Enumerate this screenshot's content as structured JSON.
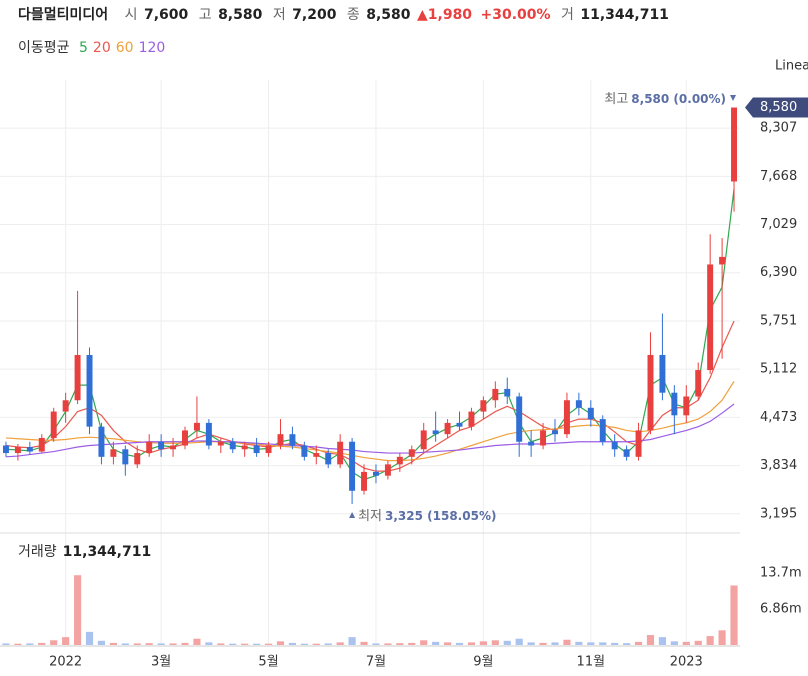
{
  "header": {
    "name": "다믈멀티미디어",
    "items": [
      {
        "label": "시",
        "value": "7,600"
      },
      {
        "label": "고",
        "value": "8,580"
      },
      {
        "label": "저",
        "value": "7,200"
      },
      {
        "label": "종",
        "value": "8,580"
      }
    ],
    "change": "▲1,980",
    "change_pct": "+30.00%",
    "volume_label": "거",
    "volume_value": "11,344,711",
    "ma_title": "이동평균",
    "scale": "Linea"
  },
  "chart_data": {
    "type": "candlestick",
    "categories": [
      null,
      null,
      null,
      null,
      null,
      "2022",
      null,
      null,
      null,
      null,
      null,
      null,
      null,
      "3월",
      null,
      null,
      null,
      null,
      null,
      null,
      null,
      null,
      "5월",
      null,
      null,
      null,
      null,
      null,
      null,
      null,
      null,
      "7월",
      null,
      null,
      null,
      null,
      null,
      null,
      null,
      null,
      "9월",
      null,
      null,
      null,
      null,
      null,
      null,
      null,
      null,
      "11월",
      null,
      null,
      null,
      null,
      null,
      null,
      null,
      "2023",
      null,
      null,
      null,
      null
    ],
    "open": [
      4100,
      4000,
      4080,
      4020,
      4200,
      4550,
      4700,
      5300,
      4350,
      3950,
      4050,
      3850,
      4000,
      4150,
      4050,
      4100,
      4300,
      4400,
      4100,
      4150,
      4050,
      4100,
      4000,
      4100,
      4250,
      4100,
      3950,
      4000,
      3850,
      4150,
      3500,
      3750,
      3700,
      3850,
      3950,
      4050,
      4300,
      4250,
      4400,
      4350,
      4550,
      4700,
      4850,
      4750,
      4150,
      4100,
      4300,
      4250,
      4700,
      4600,
      4450,
      4150,
      4050,
      3950,
      4300,
      5300,
      4800,
      4500,
      4750,
      5100,
      6500,
      7600
    ],
    "high": [
      4150,
      4120,
      4150,
      4250,
      4600,
      4800,
      6150,
      5400,
      4400,
      4150,
      4100,
      4100,
      4250,
      4250,
      4200,
      4350,
      4750,
      4450,
      4200,
      4200,
      4150,
      4200,
      4150,
      4450,
      4350,
      4150,
      4100,
      4050,
      4250,
      4200,
      3850,
      3850,
      3900,
      4000,
      4100,
      4400,
      4550,
      4450,
      4550,
      4600,
      4750,
      4950,
      5000,
      4800,
      4300,
      4400,
      4450,
      4800,
      4800,
      4700,
      4500,
      4250,
      4100,
      4400,
      5600,
      5850,
      4900,
      4900,
      5200,
      6900,
      6850,
      8580
    ],
    "low": [
      3950,
      3900,
      3980,
      4000,
      4150,
      4400,
      4650,
      4250,
      3850,
      3850,
      3700,
      3800,
      3950,
      3950,
      3950,
      4050,
      4200,
      4050,
      4000,
      4000,
      3950,
      3950,
      3950,
      4050,
      4050,
      3900,
      3850,
      3800,
      3800,
      3325,
      3450,
      3600,
      3650,
      3750,
      3850,
      4000,
      4150,
      4200,
      4300,
      4300,
      4450,
      4600,
      4650,
      3950,
      3950,
      4050,
      4150,
      4200,
      4500,
      4350,
      4100,
      3950,
      3900,
      3900,
      4250,
      4700,
      4250,
      4400,
      4700,
      5050,
      5250,
      7200
    ],
    "close": [
      4000,
      4080,
      4020,
      4200,
      4550,
      4700,
      5300,
      4350,
      3950,
      4050,
      3850,
      4000,
      4150,
      4050,
      4100,
      4300,
      4400,
      4100,
      4150,
      4050,
      4100,
      4000,
      4100,
      4250,
      4100,
      3950,
      4000,
      3850,
      4150,
      3500,
      3750,
      3700,
      3850,
      3950,
      4050,
      4300,
      4250,
      4400,
      4350,
      4550,
      4700,
      4850,
      4750,
      4150,
      4100,
      4300,
      4250,
      4700,
      4600,
      4450,
      4150,
      4050,
      3950,
      4300,
      5300,
      4800,
      4500,
      4750,
      5100,
      6500,
      6600,
      8580
    ],
    "up_color": "#e8403f",
    "down_color": "#2f6fd6",
    "series": [
      {
        "name": "5",
        "color": "#2fa84f",
        "values": [
          4050,
          4040,
          4030,
          4080,
          4300,
          4550,
          4900,
          4900,
          4300,
          4050,
          3980,
          3950,
          4050,
          4100,
          4080,
          4180,
          4300,
          4250,
          4150,
          4100,
          4080,
          4050,
          4060,
          4150,
          4180,
          4050,
          3980,
          3900,
          4000,
          3750,
          3650,
          3700,
          3780,
          3880,
          3980,
          4150,
          4250,
          4330,
          4380,
          4480,
          4620,
          4780,
          4800,
          4400,
          4150,
          4200,
          4270,
          4500,
          4620,
          4520,
          4300,
          4120,
          4000,
          4150,
          4900,
          5000,
          4650,
          4600,
          4900,
          5900,
          6200,
          7500
        ]
      },
      {
        "name": "20",
        "color": "#e8584f",
        "values": [
          4100,
          4080,
          4070,
          4100,
          4200,
          4350,
          4550,
          4600,
          4500,
          4300,
          4150,
          4050,
          4000,
          4050,
          4080,
          4120,
          4200,
          4250,
          4200,
          4150,
          4120,
          4100,
          4080,
          4100,
          4130,
          4100,
          4050,
          4000,
          3980,
          3900,
          3800,
          3760,
          3760,
          3800,
          3880,
          4000,
          4100,
          4200,
          4300,
          4350,
          4450,
          4550,
          4620,
          4550,
          4450,
          4350,
          4300,
          4400,
          4450,
          4450,
          4400,
          4280,
          4150,
          4100,
          4300,
          4500,
          4600,
          4600,
          4700,
          5000,
          5400,
          5750
        ]
      },
      {
        "name": "60",
        "color": "#f0a13c",
        "values": [
          4200,
          4190,
          4180,
          4170,
          4170,
          4180,
          4200,
          4210,
          4200,
          4190,
          4170,
          4150,
          4140,
          4130,
          4130,
          4130,
          4140,
          4150,
          4150,
          4140,
          4130,
          4120,
          4100,
          4090,
          4080,
          4060,
          4040,
          4020,
          4000,
          3970,
          3940,
          3920,
          3900,
          3900,
          3910,
          3930,
          3960,
          4000,
          4050,
          4100,
          4150,
          4200,
          4250,
          4280,
          4300,
          4310,
          4320,
          4340,
          4360,
          4370,
          4360,
          4340,
          4300,
          4280,
          4300,
          4330,
          4370,
          4400,
          4450,
          4550,
          4700,
          4950
        ]
      },
      {
        "name": "120",
        "color": "#9b5de5",
        "values": [
          3950,
          3960,
          3980,
          4000,
          4020,
          4050,
          4080,
          4100,
          4110,
          4120,
          4130,
          4140,
          4150,
          4150,
          4150,
          4150,
          4160,
          4160,
          4150,
          4150,
          4140,
          4130,
          4120,
          4110,
          4100,
          4090,
          4080,
          4060,
          4050,
          4040,
          4020,
          4010,
          4000,
          4000,
          4000,
          4010,
          4020,
          4030,
          4040,
          4060,
          4080,
          4100,
          4110,
          4120,
          4120,
          4120,
          4130,
          4140,
          4150,
          4150,
          4150,
          4150,
          4150,
          4160,
          4180,
          4220,
          4260,
          4300,
          4350,
          4420,
          4530,
          4650
        ]
      }
    ],
    "ylim": [
      2980,
      8945
    ],
    "yticks": [
      {
        "value": 3195,
        "label": "3,195"
      },
      {
        "value": 3834,
        "label": "3,834"
      },
      {
        "value": 4473,
        "label": "4,473"
      },
      {
        "value": 5112,
        "label": "5,112"
      },
      {
        "value": 5751,
        "label": "5,751"
      },
      {
        "value": 6390,
        "label": "6,390"
      },
      {
        "value": 7029,
        "label": "7,029"
      },
      {
        "value": 7668,
        "label": "7,668"
      },
      {
        "value": 8307,
        "label": "8,307"
      }
    ],
    "price_tag": "8,580",
    "high_annotation": {
      "label": "최고",
      "text": "8,580 (0.00%)"
    },
    "low_annotation": {
      "label": "최저",
      "text": "3,325 (158.05%)"
    },
    "volume": {
      "title": "거래량",
      "title_value": "11,344,711",
      "values": [
        300000,
        250000,
        300000,
        400000,
        900000,
        1500000,
        13300000,
        2500000,
        800000,
        400000,
        300000,
        300000,
        350000,
        300000,
        300000,
        400000,
        1200000,
        500000,
        300000,
        250000,
        250000,
        250000,
        250000,
        700000,
        400000,
        250000,
        250000,
        300000,
        500000,
        1500000,
        600000,
        300000,
        300000,
        350000,
        400000,
        900000,
        600000,
        500000,
        400000,
        500000,
        700000,
        900000,
        800000,
        1200000,
        500000,
        400000,
        500000,
        1000000,
        600000,
        500000,
        500000,
        400000,
        350000,
        600000,
        1900000,
        1500000,
        700000,
        600000,
        800000,
        1700000,
        2800000,
        11344711
      ],
      "ylim": [
        0,
        20960000
      ],
      "yticks": [
        {
          "value": 6860000,
          "label": "6.86m"
        },
        {
          "value": 13700000,
          "label": "13.7m"
        }
      ]
    },
    "grid": true
  }
}
